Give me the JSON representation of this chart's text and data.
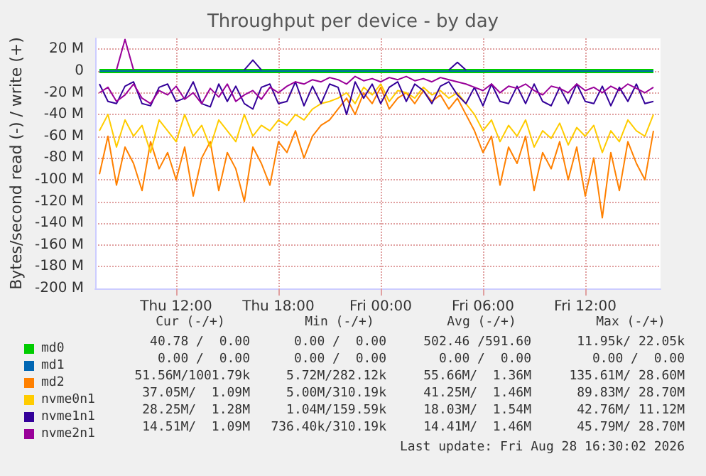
{
  "chart_data": {
    "type": "line",
    "title": "Throughput per device - by day",
    "ylabel": "Bytes/second read (-) / write (+)",
    "x": [
      "2026-08-27T07:30",
      "2026-08-27T08:00",
      "2026-08-27T08:30",
      "2026-08-27T09:00",
      "2026-08-27T09:30",
      "2026-08-27T10:00",
      "2026-08-27T10:30",
      "2026-08-27T11:00",
      "2026-08-27T11:30",
      "2026-08-27T12:00",
      "2026-08-27T12:30",
      "2026-08-27T13:00",
      "2026-08-27T13:30",
      "2026-08-27T14:00",
      "2026-08-27T14:30",
      "2026-08-27T15:00",
      "2026-08-27T15:30",
      "2026-08-27T16:00",
      "2026-08-27T16:30",
      "2026-08-27T17:00",
      "2026-08-27T17:30",
      "2026-08-27T18:00",
      "2026-08-27T18:30",
      "2026-08-27T19:00",
      "2026-08-27T19:30",
      "2026-08-27T20:00",
      "2026-08-27T20:30",
      "2026-08-27T21:00",
      "2026-08-27T21:30",
      "2026-08-27T22:00",
      "2026-08-27T22:30",
      "2026-08-27T23:00",
      "2026-08-27T23:30",
      "2026-08-28T00:00",
      "2026-08-28T00:30",
      "2026-08-28T01:00",
      "2026-08-28T01:30",
      "2026-08-28T02:00",
      "2026-08-28T02:30",
      "2026-08-28T03:00",
      "2026-08-28T03:30",
      "2026-08-28T04:00",
      "2026-08-28T04:30",
      "2026-08-28T05:00",
      "2026-08-28T05:30",
      "2026-08-28T06:00",
      "2026-08-28T06:30",
      "2026-08-28T07:00",
      "2026-08-28T07:30",
      "2026-08-28T08:00",
      "2026-08-28T08:30",
      "2026-08-28T09:00",
      "2026-08-28T09:30",
      "2026-08-28T10:00",
      "2026-08-28T10:30",
      "2026-08-28T11:00",
      "2026-08-28T11:30",
      "2026-08-28T12:00",
      "2026-08-28T12:30",
      "2026-08-28T13:00",
      "2026-08-28T13:30",
      "2026-08-28T14:00",
      "2026-08-28T14:30",
      "2026-08-28T15:00",
      "2026-08-28T15:30",
      "2026-08-28T16:00"
    ],
    "series": [
      {
        "name": "md0",
        "color": "#00cc00",
        "x": [
          "2026-08-27T07:30",
          "2026-08-28T16:00"
        ],
        "values": [
          0,
          0
        ]
      },
      {
        "name": "md1",
        "color": "#0066b3",
        "x": [
          "2026-08-27T07:30",
          "2026-08-28T16:00"
        ],
        "values": [
          0,
          0
        ]
      },
      {
        "name": "md2",
        "color": "#ff8000",
        "values": [
          -95,
          -60,
          -105,
          -70,
          -85,
          -110,
          -65,
          -90,
          -75,
          -100,
          -70,
          -115,
          -80,
          -65,
          -110,
          -75,
          -90,
          -120,
          -70,
          -85,
          -105,
          -65,
          -75,
          -55,
          -80,
          -60,
          -50,
          -45,
          -35,
          -25,
          -40,
          -20,
          -30,
          -15,
          -35,
          -25,
          -20,
          -30,
          -18,
          -28,
          -22,
          -35,
          -25,
          -40,
          -55,
          -75,
          -60,
          -105,
          -70,
          -85,
          -60,
          -110,
          -75,
          -90,
          -65,
          -100,
          -70,
          -115,
          -80,
          -135,
          -75,
          -110,
          -65,
          -85,
          -100,
          -55
        ]
      },
      {
        "name": "nvme0n1",
        "color": "#ffcc00",
        "values": [
          -55,
          -40,
          -70,
          -45,
          -60,
          -50,
          -75,
          -45,
          -55,
          -65,
          -40,
          -60,
          -50,
          -70,
          -45,
          -55,
          -65,
          -40,
          -60,
          -50,
          -55,
          -45,
          -50,
          -40,
          -45,
          -35,
          -30,
          -28,
          -25,
          -20,
          -30,
          -15,
          -22,
          -12,
          -28,
          -18,
          -20,
          -25,
          -15,
          -22,
          -18,
          -25,
          -20,
          -30,
          -40,
          -55,
          -45,
          -65,
          -50,
          -60,
          -45,
          -70,
          -55,
          -62,
          -48,
          -68,
          -52,
          -60,
          -50,
          -75,
          -55,
          -65,
          -45,
          -55,
          -60,
          -40
        ]
      },
      {
        "name": "nvme1n1",
        "color": "#330099",
        "values": [
          -12,
          -28,
          -30,
          -14,
          -10,
          -30,
          -32,
          -15,
          -12,
          -28,
          -25,
          -10,
          -30,
          -33,
          -12,
          -28,
          -14,
          -30,
          -35,
          -15,
          -12,
          -30,
          -28,
          -10,
          -32,
          -14,
          -30,
          -12,
          -15,
          -40,
          -10,
          -25,
          -12,
          -30,
          -15,
          -10,
          -28,
          -12,
          -18,
          -30,
          -14,
          -10,
          -22,
          -30,
          -15,
          -32,
          -12,
          -28,
          -30,
          -14,
          -30,
          -12,
          -28,
          -32,
          -15,
          -30,
          -12,
          -28,
          -30,
          -14,
          -32,
          -15,
          -28,
          -12,
          -30,
          -28
        ]
      },
      {
        "name": "nvme2n1",
        "color": "#990099",
        "values": [
          -20,
          -15,
          -28,
          -22,
          -12,
          -25,
          -30,
          -18,
          -22,
          -14,
          -26,
          -20,
          -30,
          -16,
          -24,
          -12,
          -28,
          -22,
          -18,
          -26,
          -15,
          -20,
          -14,
          -10,
          -12,
          -8,
          -10,
          -6,
          -8,
          -12,
          -5,
          -9,
          -7,
          -10,
          -6,
          -8,
          -5,
          -9,
          -7,
          -10,
          -6,
          -8,
          -10,
          -12,
          -15,
          -18,
          -12,
          -20,
          -14,
          -16,
          -12,
          -18,
          -22,
          -14,
          -16,
          -20,
          -12,
          -18,
          -15,
          -20,
          -14,
          -18,
          -12,
          -16,
          -20,
          -15
        ]
      },
      {
        "color": "#330099",
        "x": [
          "2026-08-27T16:00",
          "2026-08-27T16:30",
          "2026-08-27T17:00",
          "2026-08-27T22:00",
          "2026-08-28T04:00",
          "2026-08-28T04:30",
          "2026-08-28T05:00"
        ],
        "values": [
          1,
          10,
          1,
          null,
          1,
          8,
          1
        ]
      },
      {
        "color": "#990099",
        "x": [
          "2026-08-27T08:30",
          "2026-08-27T09:00",
          "2026-08-27T09:30"
        ],
        "values": [
          1,
          29,
          1
        ]
      }
    ],
    "xlim": [
      "2026-08-27T07:15",
      "2026-08-28T16:25"
    ],
    "xticks": [
      {
        "value": "2026-08-27T12:00",
        "label": "Thu 12:00"
      },
      {
        "value": "2026-08-27T18:00",
        "label": "Thu 18:00"
      },
      {
        "value": "2026-08-28T00:00",
        "label": "Fri 00:00"
      },
      {
        "value": "2026-08-28T06:00",
        "label": "Fri 06:00"
      },
      {
        "value": "2026-08-28T12:00",
        "label": "Fri 12:00"
      }
    ],
    "ylim": [
      -200,
      30
    ],
    "yticks": [
      {
        "value": -200,
        "label": "-200 M"
      },
      {
        "value": -180,
        "label": "-180 M"
      },
      {
        "value": -160,
        "label": "-160 M"
      },
      {
        "value": -140,
        "label": "-140 M"
      },
      {
        "value": -120,
        "label": "-120 M"
      },
      {
        "value": -100,
        "label": "-100 M"
      },
      {
        "value": -80,
        "label": "-80 M"
      },
      {
        "value": -60,
        "label": "-60 M"
      },
      {
        "value": -40,
        "label": "-40 M"
      },
      {
        "value": -20,
        "label": "-20 M"
      },
      0,
      {
        "value": 20,
        "label": "20 M"
      }
    ],
    "grid": true,
    "legend": "bottom left",
    "marker": "none",
    "line_style": "solid",
    "annotations": [
      "Cur (-/+)",
      "Min (-/+)",
      "Avg (-/+)",
      "Max (-/+)",
      "40.78 /  0.00",
      "0.00 /  0.00",
      "502.46 /591.60",
      "11.95k/ 22.05k",
      "0.00 /  0.00",
      "0.00 /  0.00",
      "0.00 /  0.00",
      "0.00 /  0.00",
      "51.56M/1001.79k",
      "5.72M/282.12k",
      "55.66M/  1.36M",
      "135.61M/ 28.60M",
      "37.05M/  1.09M",
      "5.00M/310.19k",
      "41.25M/  1.46M",
      "89.83M/ 28.70M",
      "28.25M/  1.28M",
      "1.04M/159.59k",
      "18.03M/  1.54M",
      "42.76M/ 11.12M",
      "14.51M/  1.09M",
      "736.40k/310.19k",
      "14.41M/  1.46M",
      "45.79M/ 28.70M",
      "Last update: Fri Aug 28 16:30:02 2026"
    ]
  }
}
